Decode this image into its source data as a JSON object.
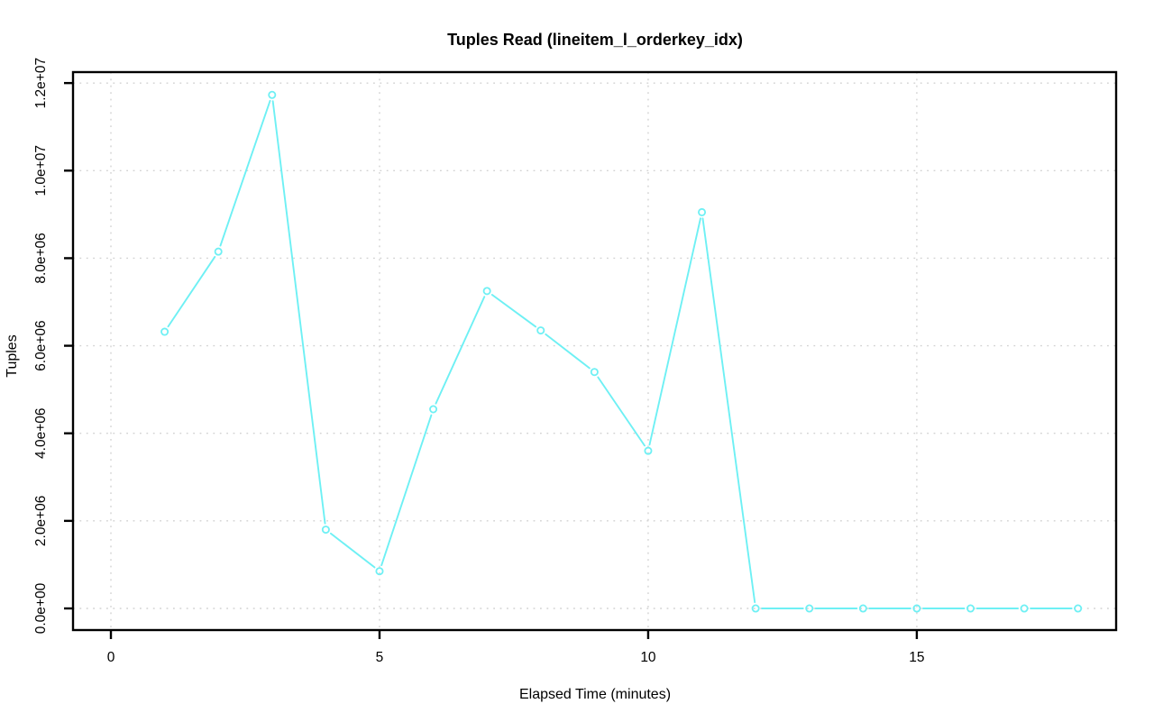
{
  "chart_data": {
    "type": "line",
    "title": "Tuples Read (lineitem_l_orderkey_idx)",
    "xlabel": "Elapsed Time (minutes)",
    "ylabel": "Tuples",
    "legend": "none",
    "grid": "dotted",
    "marker": "open-circle",
    "line_style": "segments-with-point-gaps",
    "series": [
      {
        "name": "tuples_read",
        "x": [
          1,
          2,
          3,
          4,
          5,
          6,
          7,
          8,
          9,
          10,
          11,
          12,
          13,
          14,
          15,
          16,
          17,
          18
        ],
        "y": [
          6320000,
          8150000,
          11730000,
          1800000,
          850000,
          4550000,
          7250000,
          6350000,
          5400000,
          3600000,
          9050000,
          0,
          0,
          0,
          0,
          0,
          0,
          0
        ]
      }
    ],
    "x_ticks": [
      0,
      5,
      10,
      15
    ],
    "x_tick_labels": [
      "0",
      "5",
      "10",
      "15"
    ],
    "y_ticks": [
      0,
      2000000,
      4000000,
      6000000,
      8000000,
      10000000,
      12000000
    ],
    "y_tick_labels": [
      "0.0e+00",
      "2.0e+06",
      "4.0e+06",
      "6.0e+06",
      "8.0e+06",
      "1.0e+07",
      "1.2e+07"
    ],
    "xlim": [
      -0.705,
      18.71
    ],
    "ylim": [
      -494000,
      12250000
    ],
    "colors": {
      "line": "#6EF0F4",
      "marker": "#6EF0F4",
      "grid": "#d2d2d2",
      "axis": "#000000",
      "text": "#000000",
      "background": "#ffffff"
    }
  }
}
